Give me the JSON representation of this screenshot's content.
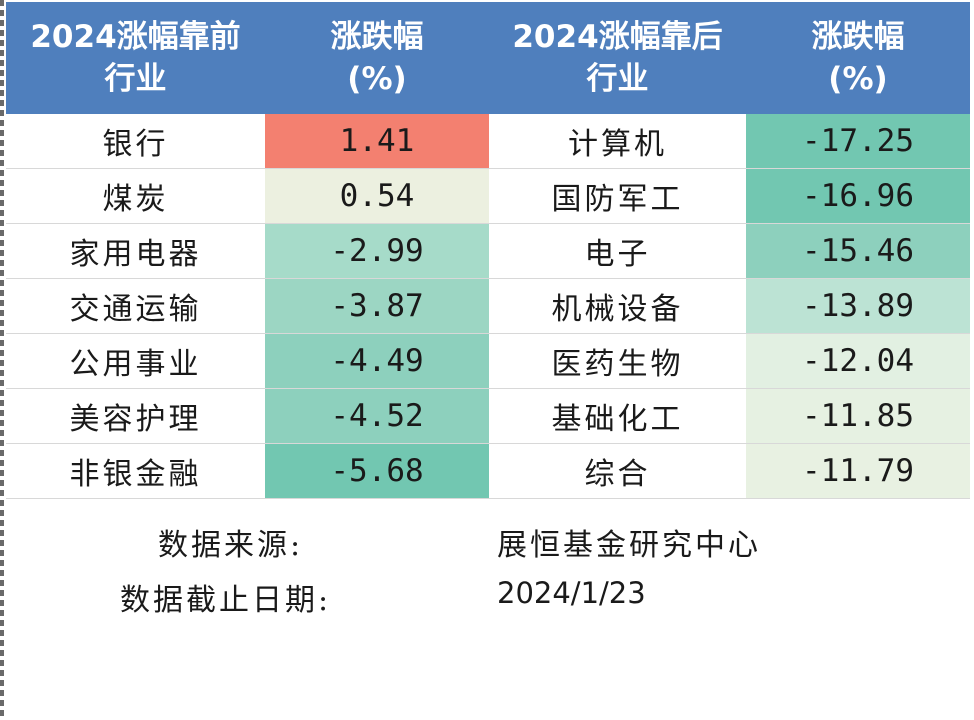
{
  "table": {
    "headers": [
      "2024涨幅靠前\n行业",
      "涨跌幅\n(%)",
      "2024涨幅靠后\n行业",
      "涨跌幅\n(%)"
    ],
    "rows": [
      {
        "top_name": "银行",
        "top_value": "1.41",
        "bottom_name": "计算机",
        "bottom_value": "-17.25"
      },
      {
        "top_name": "煤炭",
        "top_value": "0.54",
        "bottom_name": "国防军工",
        "bottom_value": "-16.96"
      },
      {
        "top_name": "家用电器",
        "top_value": "-2.99",
        "bottom_name": "电子",
        "bottom_value": "-15.46"
      },
      {
        "top_name": "交通运输",
        "top_value": "-3.87",
        "bottom_name": "机械设备",
        "bottom_value": "-13.89"
      },
      {
        "top_name": "公用事业",
        "top_value": "-4.49",
        "bottom_name": "医药生物",
        "bottom_value": "-12.04"
      },
      {
        "top_name": "美容护理",
        "top_value": "-4.52",
        "bottom_name": "基础化工",
        "bottom_value": "-11.85"
      },
      {
        "top_name": "非银金融",
        "top_value": "-5.68",
        "bottom_name": "综合",
        "bottom_value": "-11.79"
      }
    ],
    "top_value_colors": [
      "#f38070",
      "#ecf0e0",
      "#a6dbc9",
      "#9cd6c3",
      "#8dd0bd",
      "#8dd0bd",
      "#72c7b1"
    ],
    "bottom_value_colors": [
      "#72c7b1",
      "#72c7b1",
      "#8dd0bd",
      "#bce3d4",
      "#e2f0e2",
      "#e6f1e2",
      "#e8f1e2"
    ],
    "header_color": "#4f7fbd"
  },
  "source": {
    "label": "数据来源:",
    "value": "展恒基金研究中心",
    "date_label": "数据截止日期:",
    "date_value": "2024/1/23"
  }
}
